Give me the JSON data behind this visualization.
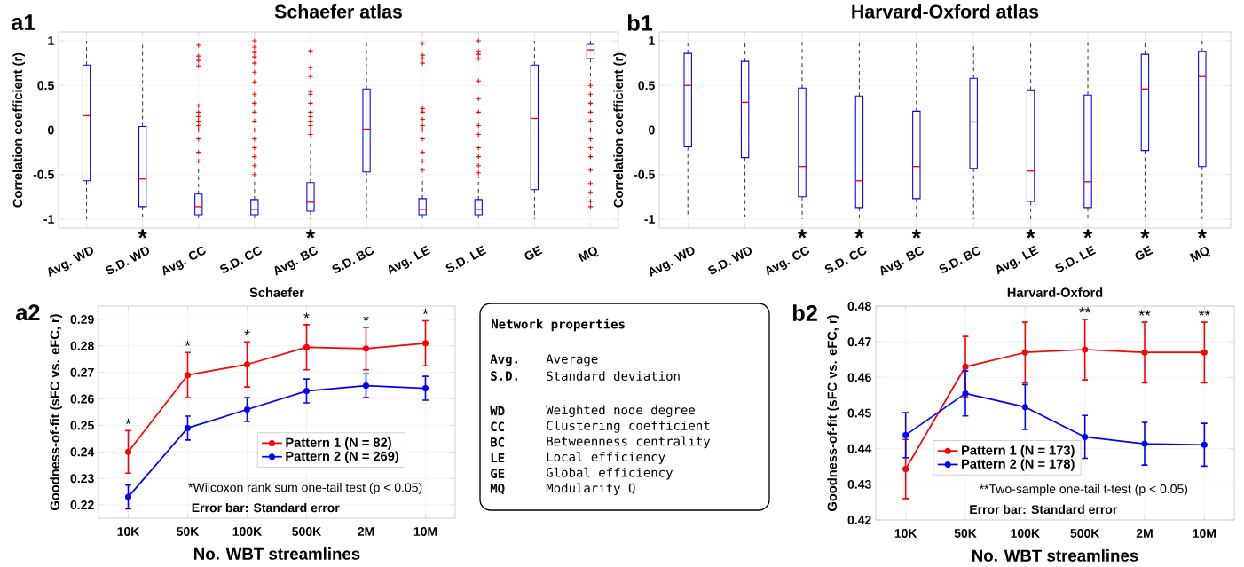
{
  "chart_data": [
    {
      "type": "box",
      "title": "Schaefer atlas",
      "ylabel": "Correlation coefficient (r)",
      "categories": [
        "Avg. WD",
        "S.D. WD",
        "Avg. CC",
        "S.D. CC",
        "Avg. BC",
        "S.D. BC",
        "Avg. LE",
        "S.D. LE",
        "GE",
        "MQ"
      ],
      "ylim": [
        -1.1,
        1.1
      ],
      "yticks": [
        -1,
        -0.5,
        0,
        0.5,
        1
      ],
      "grid": true,
      "ref_lines": [
        {
          "axis": "y",
          "value": 0,
          "color": "#ff9999"
        }
      ],
      "series": [
        {
          "color": "#0000ff",
          "boxes": [
            {
              "low": -1,
              "q1": -0.57,
              "median": 0.16,
              "q3": 0.73,
              "high": 1
            },
            {
              "low": -1,
              "q1": -0.86,
              "median": -0.55,
              "q3": 0.04,
              "high": 0.98
            },
            {
              "low": -1,
              "q1": -0.95,
              "median": -0.86,
              "q3": -0.72,
              "high": -0.42,
              "outliers": [
                -0.35,
                -0.25,
                -0.1,
                0,
                0.05,
                0.1,
                0.15,
                0.2,
                0.27,
                0.72,
                0.78,
                0.83,
                0.95
              ]
            },
            {
              "low": -1,
              "q1": -0.95,
              "median": -0.89,
              "q3": -0.78,
              "high": -0.55,
              "outliers": [
                -0.5,
                -0.4,
                -0.3,
                -0.2,
                -0.1,
                0,
                0.1,
                0.2,
                0.3,
                0.4,
                0.54,
                0.65,
                0.75,
                0.82,
                0.87,
                0.93,
                1
              ]
            },
            {
              "low": -1,
              "q1": -0.91,
              "median": -0.81,
              "q3": -0.59,
              "high": -0.12,
              "outliers": [
                -0.05,
                0,
                0.05,
                0.1,
                0.15,
                0.2,
                0.3,
                0.4,
                0.43,
                0.6,
                0.7,
                0.88,
                0.89
              ]
            },
            {
              "low": -1,
              "q1": -0.47,
              "median": 0.01,
              "q3": 0.46,
              "high": 0.97
            },
            {
              "low": -1,
              "q1": -0.95,
              "median": -0.89,
              "q3": -0.77,
              "high": -0.52,
              "outliers": [
                -0.45,
                -0.35,
                -0.25,
                -0.1,
                0,
                0.05,
                0.12,
                0.2,
                0.24,
                0.75,
                0.8,
                0.84,
                0.97
              ]
            },
            {
              "low": -1,
              "q1": -0.95,
              "median": -0.89,
              "q3": -0.78,
              "high": -0.52,
              "outliers": [
                -0.48,
                -0.4,
                -0.3,
                -0.2,
                -0.05,
                0.05,
                0.2,
                0.35,
                0.55,
                0.8,
                0.85,
                0.88,
                1
              ]
            },
            {
              "low": -1,
              "q1": -0.67,
              "median": 0.13,
              "q3": 0.73,
              "high": 1
            },
            {
              "low": 0.55,
              "q1": 0.8,
              "median": 0.9,
              "q3": 0.96,
              "high": 1,
              "outliers": [
                0.5,
                0.4,
                0.3,
                0.2,
                0.1,
                0,
                -0.1,
                -0.2,
                -0.3,
                -0.45,
                -0.6,
                -0.7,
                -0.8,
                -0.86
              ]
            }
          ]
        }
      ],
      "annotations": [
        "a1",
        "*",
        "*"
      ]
    },
    {
      "type": "box",
      "title": "Harvard-Oxford atlas",
      "ylabel": "Correlation coefficient (r)",
      "categories": [
        "Avg. WD",
        "S.D. WD",
        "Avg. CC",
        "S.D. CC",
        "Avg. BC",
        "S.D. BC",
        "Avg. LE",
        "S.D. LE",
        "GE",
        "MQ"
      ],
      "ylim": [
        -1.1,
        1.1
      ],
      "yticks": [
        -1,
        -0.5,
        0,
        0.5,
        1
      ],
      "grid": true,
      "ref_lines": [
        {
          "axis": "y",
          "value": 0,
          "color": "#ff9999"
        }
      ],
      "series": [
        {
          "color": "#0000ff",
          "boxes": [
            {
              "low": -0.95,
              "q1": -0.19,
              "median": 0.5,
              "q3": 0.86,
              "high": 1
            },
            {
              "low": -0.97,
              "q1": -0.31,
              "median": 0.31,
              "q3": 0.77,
              "high": 1
            },
            {
              "low": -1,
              "q1": -0.75,
              "median": -0.41,
              "q3": 0.47,
              "high": 1
            },
            {
              "low": -1,
              "q1": -0.87,
              "median": -0.57,
              "q3": 0.38,
              "high": 1
            },
            {
              "low": -1,
              "q1": -0.77,
              "median": -0.41,
              "q3": 0.21,
              "high": 0.98
            },
            {
              "low": -1,
              "q1": -0.43,
              "median": 0.09,
              "q3": 0.58,
              "high": 0.97
            },
            {
              "low": -1,
              "q1": -0.8,
              "median": -0.46,
              "q3": 0.45,
              "high": 1
            },
            {
              "low": -1,
              "q1": -0.87,
              "median": -0.58,
              "q3": 0.39,
              "high": 1
            },
            {
              "low": -0.97,
              "q1": -0.23,
              "median": 0.46,
              "q3": 0.85,
              "high": 1
            },
            {
              "low": -1,
              "q1": -0.41,
              "median": 0.6,
              "q3": 0.88,
              "high": 1
            }
          ]
        }
      ],
      "annotations": [
        "b1",
        "*",
        "*",
        "*",
        "*",
        "*",
        "*",
        "*"
      ]
    },
    {
      "type": "line",
      "title": "Schaefer",
      "xlabel": "No. WBT streamlines",
      "ylabel": "Goodness-of-fit (sFC vs. eFC, r)",
      "categories": [
        "10K",
        "50K",
        "100K",
        "500K",
        "2M",
        "10M"
      ],
      "ylim": [
        0.215,
        0.295
      ],
      "yticks": [
        0.22,
        0.23,
        0.24,
        0.25,
        0.26,
        0.27,
        0.28,
        0.29
      ],
      "grid": true,
      "legend": "bottom right",
      "marker": "circle",
      "series": [
        {
          "name": "Pattern 1 (N = 82)",
          "color": "#ff0000",
          "values": [
            0.24,
            0.269,
            0.273,
            0.2795,
            0.279,
            0.281
          ],
          "errors": [
            0.008,
            0.0085,
            0.0085,
            0.0085,
            0.008,
            0.0085
          ]
        },
        {
          "name": "Pattern 2 (N = 269)",
          "color": "#0000ff",
          "values": [
            0.223,
            0.249,
            0.256,
            0.263,
            0.265,
            0.264
          ],
          "errors": [
            0.0045,
            0.0045,
            0.0045,
            0.0045,
            0.0045,
            0.0045
          ]
        }
      ],
      "annotations": [
        "a2",
        "*Wilcoxon rank sum one-tail test (p < 0.05)",
        "Error bar: Standard error",
        "*",
        "*",
        "*",
        "*",
        "*",
        "*"
      ]
    },
    {
      "type": "other",
      "title": "Network properties",
      "annotations": [
        "Avg.",
        "Average",
        "S.D.",
        "Standard deviation",
        "WD",
        "Weighted node degree",
        "CC",
        "Clustering coefficient",
        "BC",
        "Betweenness centrality",
        "LE",
        "Local efficiency",
        "GE",
        "Global efficiency",
        "MQ",
        "Modularity Q"
      ]
    },
    {
      "type": "line",
      "title": "Harvard-Oxford",
      "xlabel": "No. WBT streamlines",
      "ylabel": "Goodness-of-fit (sFC vs. eFC, r)",
      "categories": [
        "10K",
        "50K",
        "100K",
        "500K",
        "2M",
        "10M"
      ],
      "ylim": [
        0.42,
        0.48
      ],
      "yticks": [
        0.42,
        0.43,
        0.44,
        0.45,
        0.46,
        0.47,
        0.48
      ],
      "grid": true,
      "legend": "bottom left",
      "marker": "circle",
      "series": [
        {
          "name": "Pattern 1 (N = 173)",
          "color": "#ff0000",
          "values": [
            0.4343,
            0.463,
            0.467,
            0.4678,
            0.467,
            0.467
          ],
          "errors": [
            0.0083,
            0.0085,
            0.0085,
            0.0085,
            0.0085,
            0.0085
          ]
        },
        {
          "name": "Pattern 2 (N = 178)",
          "color": "#0000ff",
          "values": [
            0.4438,
            0.4555,
            0.4517,
            0.4433,
            0.4414,
            0.4411
          ],
          "errors": [
            0.0063,
            0.0063,
            0.0063,
            0.006,
            0.006,
            0.006
          ]
        }
      ],
      "annotations": [
        "b2",
        "**Two-sample one-tail t-test (p < 0.05)",
        "Error bar: Standard error",
        "**",
        "**",
        "**"
      ]
    }
  ]
}
